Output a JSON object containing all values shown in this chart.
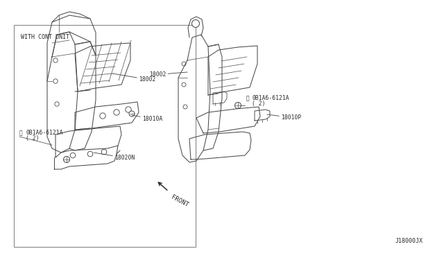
{
  "bg_color": "#ffffff",
  "line_color": "#4a4a4a",
  "text_color": "#2a2a2a",
  "box_line_color": "#777777",
  "fig_width": 6.4,
  "fig_height": 3.72,
  "dpi": 100,
  "box_label": "WITH CONT UNIT",
  "front_label": "FRONT",
  "diagram_ref": "J18000JX",
  "lw_main": 0.75,
  "lw_detail": 0.5,
  "fs_label": 5.5,
  "fs_part": 5.8,
  "fs_ref": 5.5
}
